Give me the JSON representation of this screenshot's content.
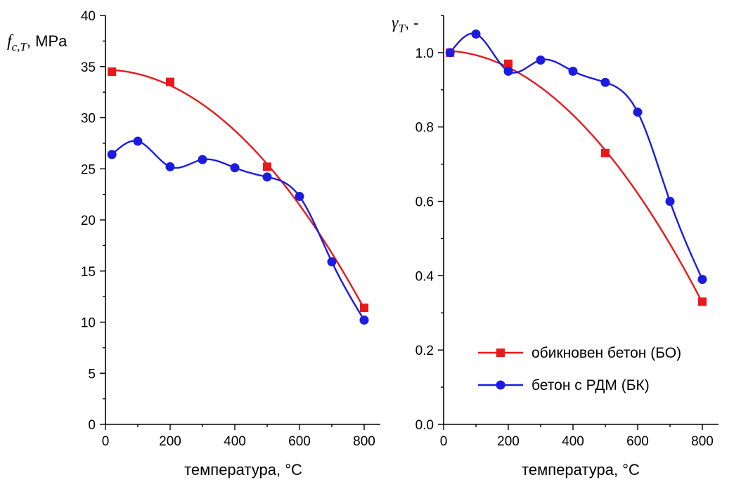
{
  "chart_data": [
    {
      "type": "line",
      "ylabel": {
        "main": "f",
        "sub": "c,T",
        "suffix": ", MPa"
      },
      "xlabel": "температура, °C",
      "xlim": [
        0,
        850
      ],
      "ylim": [
        0,
        40
      ],
      "xticks": [
        0,
        200,
        400,
        600,
        800
      ],
      "yticks": [
        0,
        5,
        10,
        15,
        20,
        25,
        30,
        35,
        40
      ],
      "yticks_minor": [
        2.5,
        7.5,
        12.5,
        17.5,
        22.5,
        27.5,
        32.5,
        37.5
      ],
      "xticks_minor": [
        100,
        300,
        500,
        700
      ],
      "ytick_labels": [
        "0",
        "5",
        "10",
        "15",
        "20",
        "25",
        "30",
        "35",
        "40"
      ],
      "xtick_labels": [
        "0",
        "200",
        "400",
        "600",
        "800"
      ],
      "series": [
        {
          "name": "обикновен бетон (БО)",
          "color": "#e8191c",
          "marker": "square",
          "x": [
            20,
            200,
            500,
            800
          ],
          "y": [
            34.5,
            33.5,
            25.2,
            11.4
          ],
          "fit": "quadratic"
        },
        {
          "name": "бетон с РДМ (БК)",
          "color": "#1c1ce0",
          "marker": "circle",
          "x": [
            20,
            100,
            200,
            300,
            400,
            500,
            600,
            700,
            800
          ],
          "y": [
            26.4,
            27.7,
            25.2,
            25.9,
            25.1,
            24.2,
            22.3,
            15.9,
            10.2
          ],
          "fit": "spline"
        }
      ]
    },
    {
      "type": "line",
      "ylabel": {
        "main": "γ",
        "sub": "T",
        "suffix": ", -"
      },
      "xlabel": "температура, °C",
      "xlim": [
        0,
        850
      ],
      "ylim": [
        0,
        1.1
      ],
      "xticks": [
        0,
        200,
        400,
        600,
        800
      ],
      "yticks": [
        0,
        0.2,
        0.4,
        0.6,
        0.8,
        1.0
      ],
      "yticks_minor": [
        0.1,
        0.3,
        0.5,
        0.7,
        0.9,
        1.1
      ],
      "xticks_minor": [
        100,
        300,
        500,
        700
      ],
      "ytick_labels": [
        "0.0",
        "0.2",
        "0.4",
        "0.6",
        "0.8",
        "1.0"
      ],
      "xtick_labels": [
        "0",
        "200",
        "400",
        "600",
        "800"
      ],
      "legend": {
        "position": "bottom-right"
      },
      "series": [
        {
          "name": "обикновен бетон (БО)",
          "color": "#e8191c",
          "marker": "square",
          "x": [
            20,
            200,
            500,
            800
          ],
          "y": [
            1.0,
            0.97,
            0.73,
            0.33
          ],
          "fit": "quadratic"
        },
        {
          "name": "бетон с РДМ (БК)",
          "color": "#1c1ce0",
          "marker": "circle",
          "x": [
            20,
            100,
            200,
            300,
            400,
            500,
            600,
            700,
            800
          ],
          "y": [
            1.0,
            1.05,
            0.95,
            0.98,
            0.95,
            0.92,
            0.84,
            0.6,
            0.39
          ],
          "fit": "spline"
        }
      ]
    }
  ]
}
